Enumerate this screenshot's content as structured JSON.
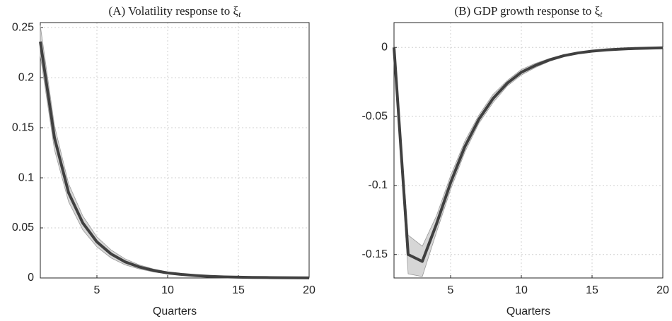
{
  "chart_data": [
    {
      "type": "line",
      "title": "(A) Volatility response to ξ",
      "title_subscript": "t",
      "xlabel": "Quarters",
      "x": [
        1,
        2,
        3,
        4,
        5,
        6,
        7,
        8,
        9,
        10,
        11,
        12,
        13,
        14,
        15,
        16,
        17,
        18,
        19,
        20
      ],
      "values": [
        0.236,
        0.14,
        0.085,
        0.055,
        0.036,
        0.024,
        0.016,
        0.011,
        0.0075,
        0.005,
        0.0035,
        0.0024,
        0.0016,
        0.0011,
        0.0008,
        0.0005,
        0.0004,
        0.0003,
        0.0002,
        0.0001
      ],
      "upper": [
        0.252,
        0.152,
        0.094,
        0.062,
        0.041,
        0.028,
        0.019,
        0.013,
        0.009,
        0.006,
        0.0042,
        0.0029,
        0.002,
        0.0014,
        0.001,
        0.0007,
        0.0005,
        0.0004,
        0.0003,
        0.0002
      ],
      "lower": [
        0.222,
        0.128,
        0.076,
        0.048,
        0.031,
        0.02,
        0.013,
        0.009,
        0.006,
        0.004,
        0.0028,
        0.0019,
        0.0012,
        0.0008,
        0.0006,
        0.0004,
        0.0003,
        0.0002,
        0.0001,
        0.0
      ],
      "color": "#404040",
      "band_color": "#d6d6d6",
      "xlim": [
        1,
        20
      ],
      "xticks": [
        5,
        10,
        15,
        20
      ],
      "ylim": [
        0,
        0.255
      ],
      "yticks": [
        0,
        0.05,
        0.1,
        0.15,
        0.2,
        0.25
      ],
      "grid": true
    },
    {
      "type": "line",
      "title": "(B) GDP growth response to ξ",
      "title_subscript": "t",
      "xlabel": "Quarters",
      "x": [
        1,
        2,
        3,
        4,
        5,
        6,
        7,
        8,
        9,
        10,
        11,
        12,
        13,
        14,
        15,
        16,
        17,
        18,
        19,
        20
      ],
      "values": [
        0,
        -0.15,
        -0.155,
        -0.128,
        -0.098,
        -0.072,
        -0.052,
        -0.037,
        -0.026,
        -0.018,
        -0.013,
        -0.009,
        -0.006,
        -0.004,
        -0.0027,
        -0.0018,
        -0.0012,
        -0.0008,
        -0.0005,
        -0.0003
      ],
      "upper": [
        0,
        -0.136,
        -0.144,
        -0.122,
        -0.093,
        -0.068,
        -0.049,
        -0.034,
        -0.024,
        -0.016,
        -0.0115,
        -0.008,
        -0.0052,
        -0.0034,
        -0.0022,
        -0.0014,
        -0.0009,
        -0.0006,
        -0.0003,
        -0.0001
      ],
      "lower": [
        0,
        -0.164,
        -0.166,
        -0.134,
        -0.103,
        -0.076,
        -0.055,
        -0.04,
        -0.028,
        -0.02,
        -0.0145,
        -0.01,
        -0.0068,
        -0.0046,
        -0.0032,
        -0.0022,
        -0.0015,
        -0.001,
        -0.0007,
        -0.0005
      ],
      "color": "#404040",
      "band_color": "#d6d6d6",
      "xlim": [
        1,
        20
      ],
      "xticks": [
        5,
        10,
        15,
        20
      ],
      "ylim": [
        -0.167,
        0.018
      ],
      "yticks": [
        -0.15,
        -0.1,
        -0.05,
        0
      ],
      "grid": true
    }
  ]
}
